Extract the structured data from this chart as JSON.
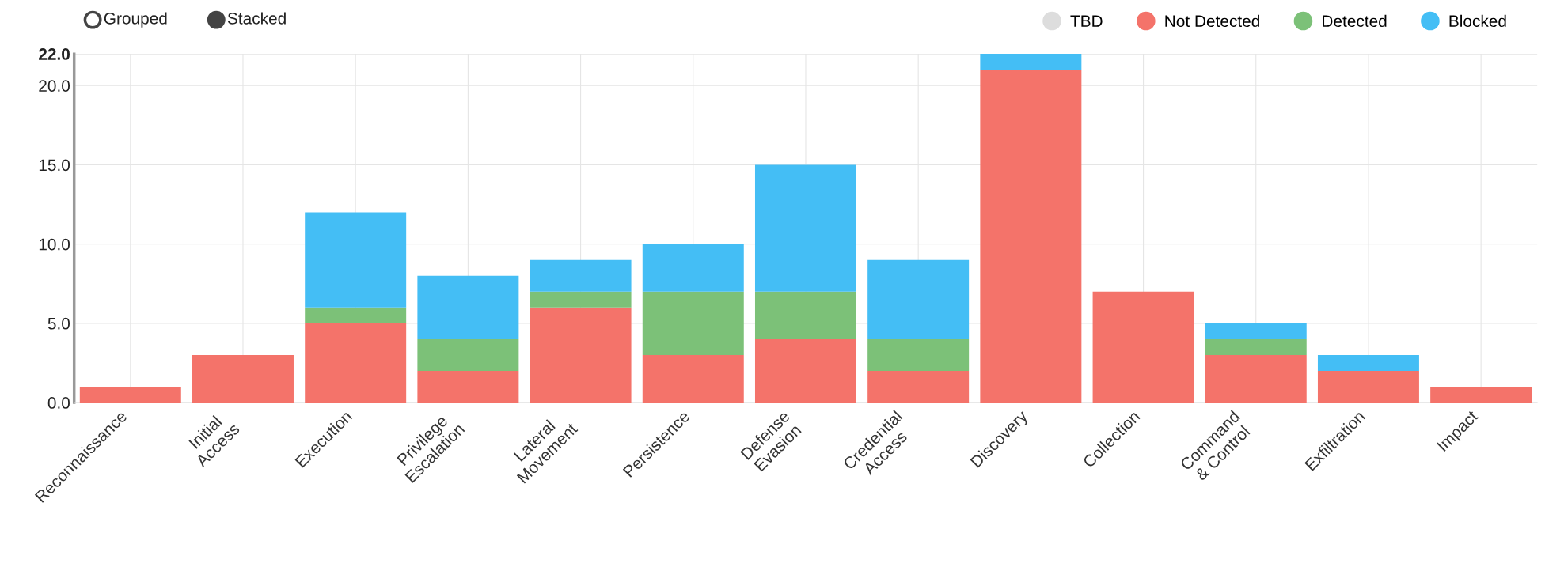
{
  "chart_data": {
    "type": "bar",
    "stacked": true,
    "categories": [
      "Reconnaissance",
      "Initial\nAccess",
      "Execution",
      "Privilege\nEscalation",
      "Lateral\nMovement",
      "Persistence",
      "Defense\nEvasion",
      "Credential\nAccess",
      "Discovery",
      "Collection",
      "Command\n& Control",
      "Exfiltration",
      "Impact"
    ],
    "series": [
      {
        "name": "TBD",
        "color": "#dddddd",
        "values": [
          0,
          0,
          0,
          0,
          0,
          0,
          0,
          0,
          0,
          0,
          0,
          0,
          0
        ]
      },
      {
        "name": "Not Detected",
        "color": "#f4736a",
        "values": [
          1,
          3,
          5,
          2,
          6,
          3,
          4,
          2,
          21,
          7,
          3,
          2,
          1
        ]
      },
      {
        "name": "Detected",
        "color": "#7cc178",
        "values": [
          0,
          0,
          1,
          2,
          1,
          4,
          3,
          2,
          0,
          0,
          1,
          0,
          0
        ]
      },
      {
        "name": "Blocked",
        "color": "#44bef5",
        "values": [
          0,
          0,
          6,
          4,
          2,
          3,
          8,
          5,
          1,
          0,
          1,
          1,
          0
        ]
      }
    ],
    "ylim": [
      0,
      22
    ],
    "yticks": [
      {
        "value": 0,
        "label": "0.0"
      },
      {
        "value": 5,
        "label": "5.0"
      },
      {
        "value": 10,
        "label": "10.0"
      },
      {
        "value": 15,
        "label": "15.0"
      },
      {
        "value": 20,
        "label": "20.0"
      },
      {
        "value": 22,
        "label": "22.0"
      }
    ],
    "grid": true,
    "legend": "top right",
    "marker": "circle",
    "annotations": [
      "Grouped",
      "Stacked"
    ]
  }
}
